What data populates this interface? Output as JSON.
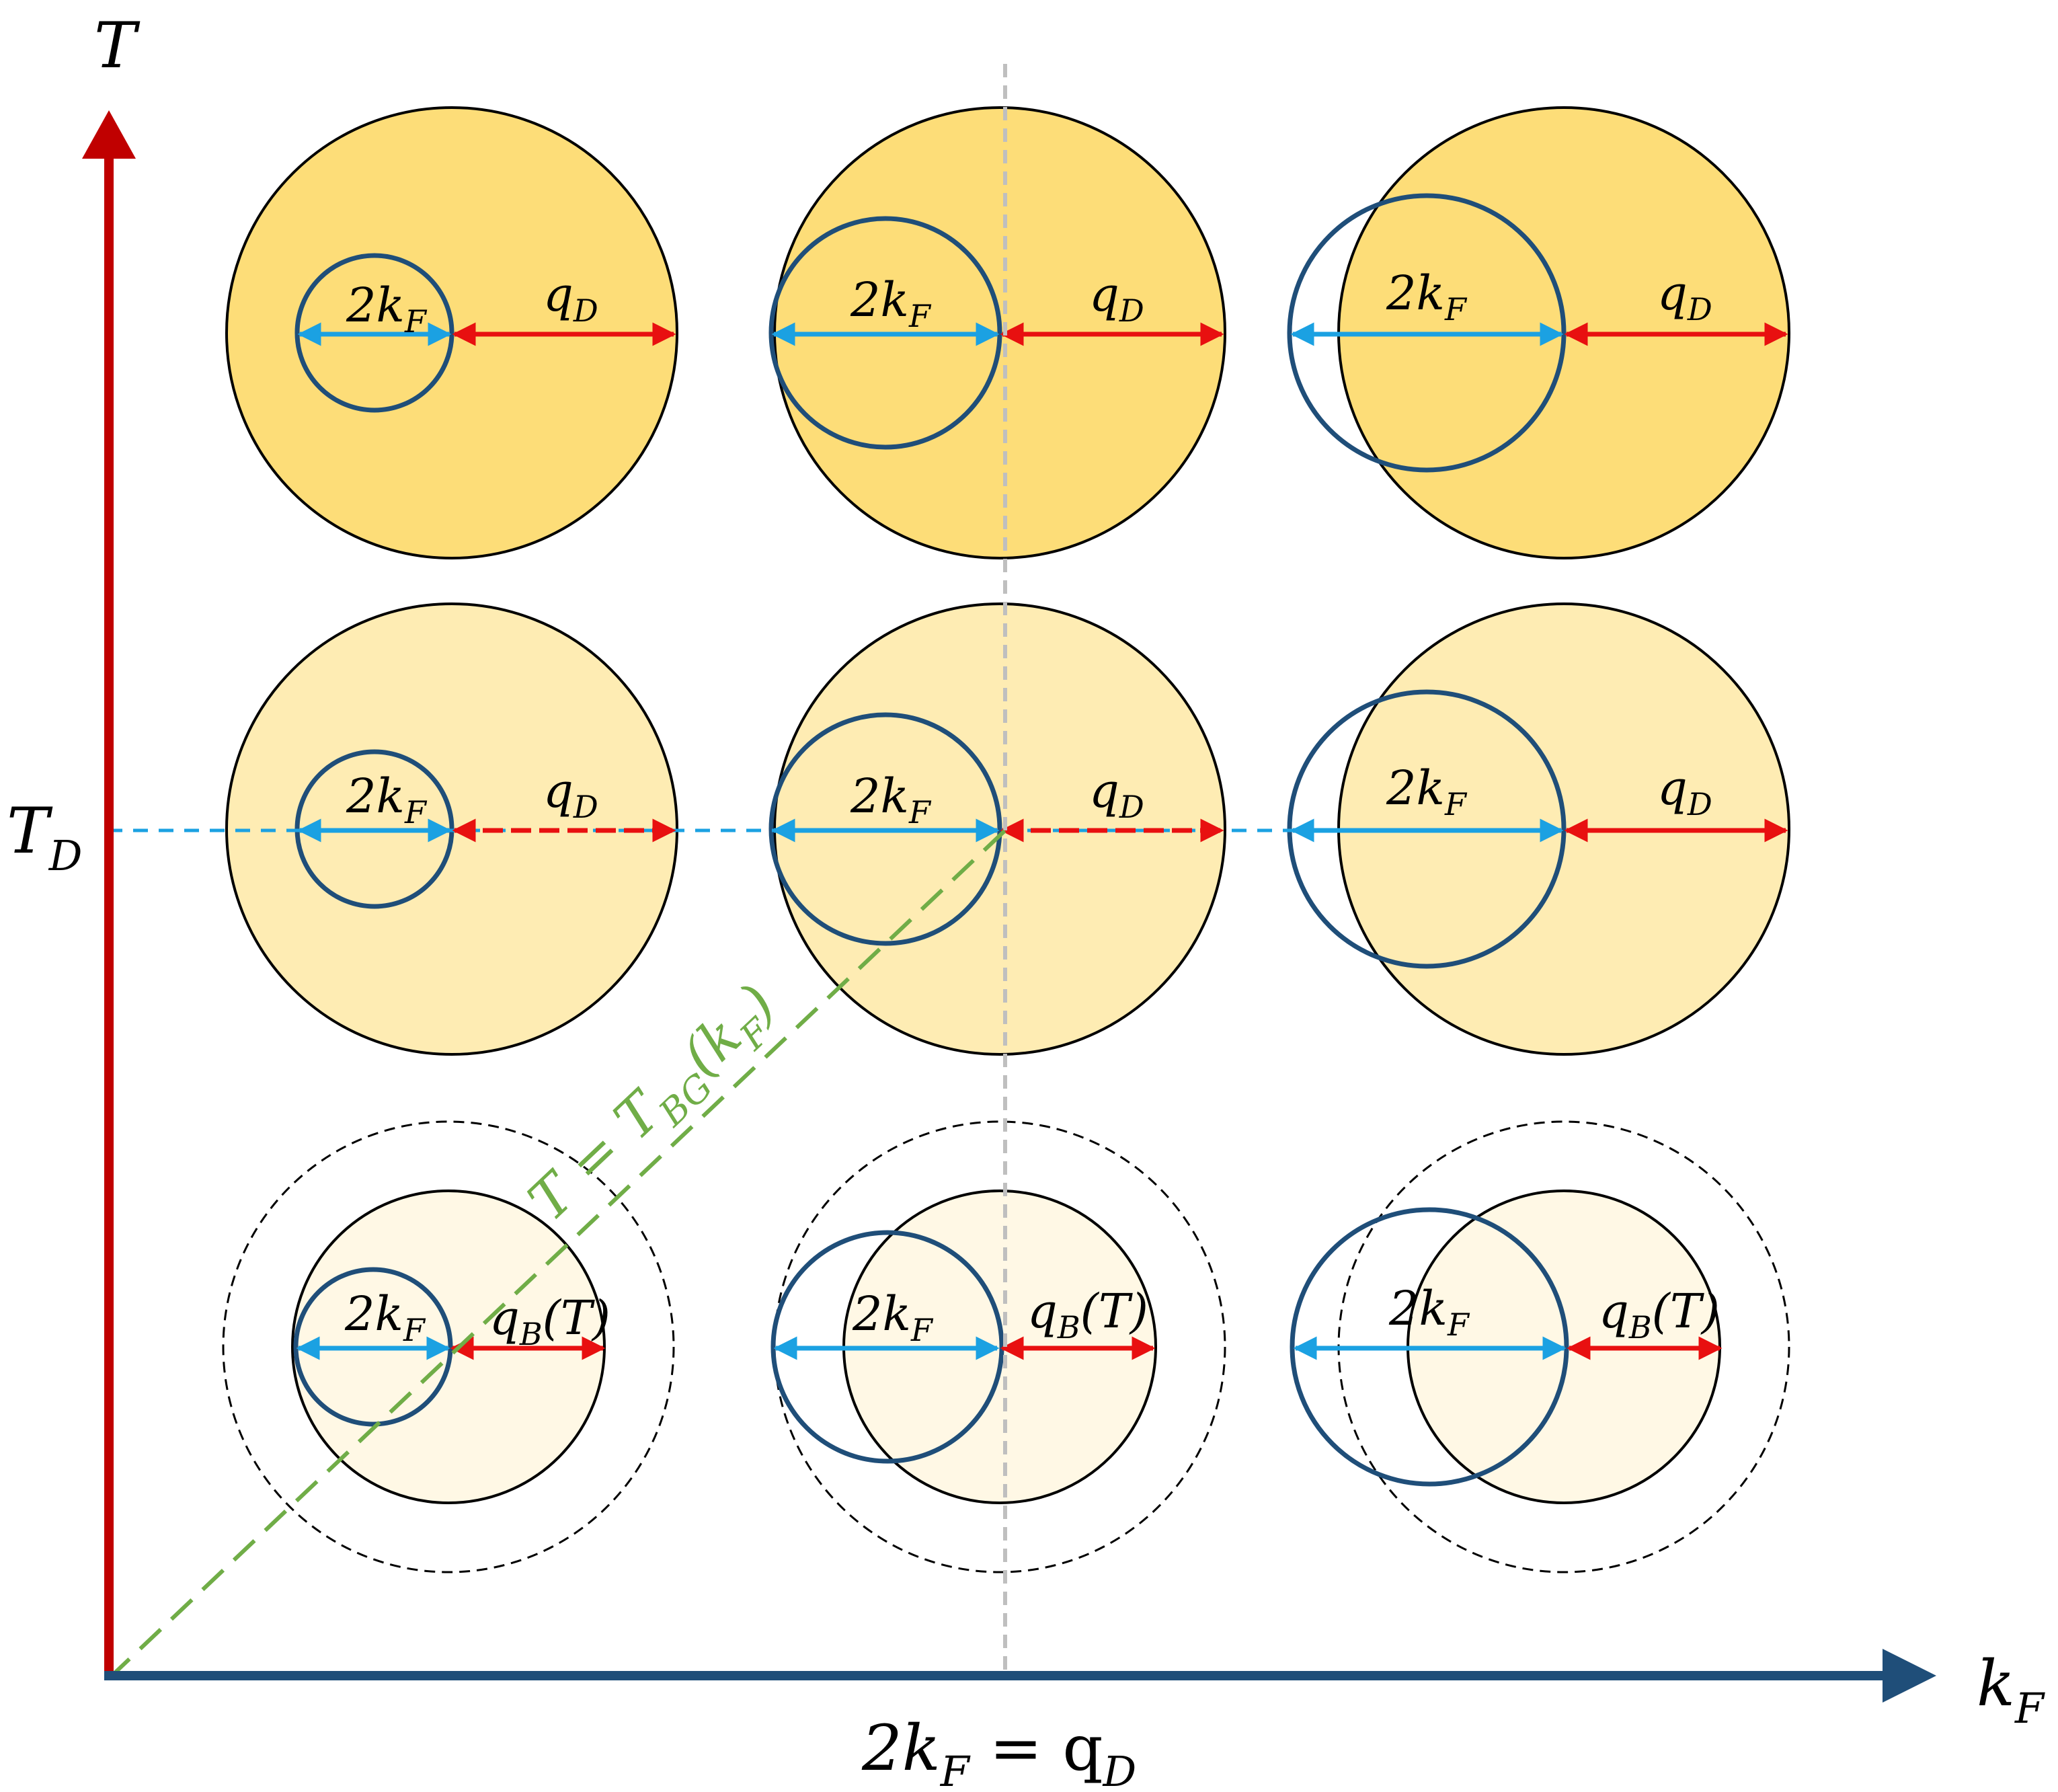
{
  "axes": {
    "y_label": "T",
    "y_tick_label": "T",
    "y_tick_sub": "D",
    "x_label": "k",
    "x_label_sub": "F",
    "x_tick_label_pre": "2k",
    "x_tick_label_sub1": "F",
    "x_tick_label_eq": " = q",
    "x_tick_label_sub2": "D"
  },
  "labels": {
    "two_kf_main": "2k",
    "two_kf_sub": "F",
    "qd_main": "q",
    "qd_sub": "D",
    "qb_main": "q",
    "qb_sub": "B",
    "qb_arg": "(T)"
  },
  "bg_line": {
    "label_lhs": "T = T",
    "label_sub": "BG",
    "label_arg_open": "(k",
    "label_arg_sub": "F",
    "label_arg_close": ")"
  },
  "colors": {
    "axis_T": "#c00000",
    "axis_kF": "#1f4e79",
    "fermi_circle": "#1f4e79",
    "kf_arrow": "#1ba1e2",
    "q_arrow": "#e81010",
    "bg_line": "#70ad47",
    "fill_top": "#fddd78",
    "fill_mid": "#feecb3",
    "fill_bottom": "#fff8e5",
    "guide_vertical": "#bfbfbf"
  }
}
